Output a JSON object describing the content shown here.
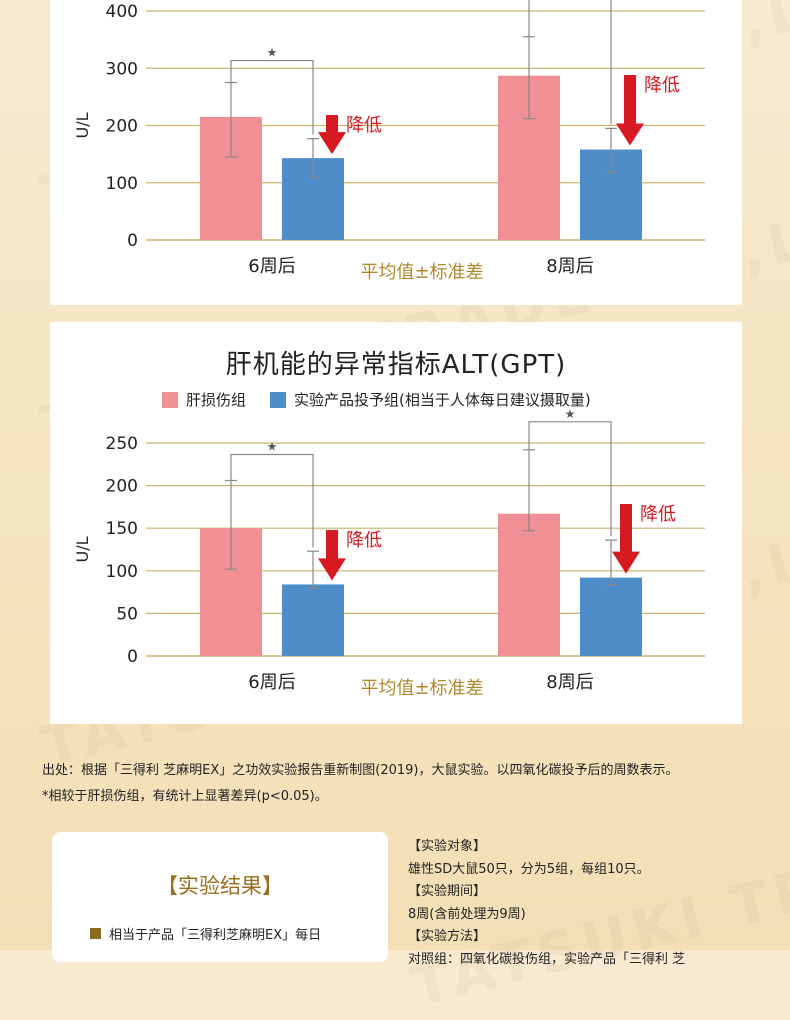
{
  "colors": {
    "control": "#f08f94",
    "treated": "#4e8dc9",
    "arrow": "#d71a21",
    "avg_label": "#b08a2a",
    "grid": "#cdb26a"
  },
  "chart_data": [
    {
      "type": "bar",
      "title": "",
      "ylabel": "U/L",
      "ylim": [
        0,
        400
      ],
      "yticks": [
        0,
        100,
        200,
        300,
        400
      ],
      "categories": [
        "6周后",
        "8周后"
      ],
      "series": [
        {
          "values": [
            215,
            287
          ],
          "err_low": [
            145,
            212
          ],
          "err_high": [
            275,
            355
          ]
        },
        {
          "values": [
            143,
            158
          ],
          "err_low": [
            110,
            118
          ],
          "err_high": [
            177,
            195
          ]
        }
      ],
      "sig_marker": "★",
      "annotation": "降低",
      "footer_label": "平均值±标准差"
    },
    {
      "type": "bar",
      "title": "肝机能的异常指标ALT(GPT)",
      "legend": [
        "肝损伤组",
        "实验产品投予组(相当于人体每日建议摄取量)"
      ],
      "ylabel": "U/L",
      "ylim": [
        0,
        250
      ],
      "yticks": [
        0,
        50,
        100,
        150,
        200,
        250
      ],
      "categories": [
        "6周后",
        "8周后"
      ],
      "series": [
        {
          "name": "肝损伤组",
          "values": [
            150,
            167
          ],
          "err_low": [
            102,
            147
          ],
          "err_high": [
            206,
            242
          ]
        },
        {
          "name": "实验产品投予组(相当于人体每日建议摄取量)",
          "values": [
            84,
            92
          ],
          "err_low": [
            80,
            84
          ],
          "err_high": [
            123,
            136
          ]
        }
      ],
      "sig_marker": "★",
      "annotation": "降低",
      "footer_label": "平均值±标准差"
    }
  ],
  "source": {
    "line1": "出处：根据「三得利 芝麻明EX」之功效实验报告重新制图(2019)，大鼠实验。以四氧化碳投予后的周数表示。",
    "line2": "*相较于肝损伤组，有统计上显著差异(p<0.05)。"
  },
  "results": {
    "title": "【实验结果】",
    "item": "相当于产品「三得利芝麻明EX」每日"
  },
  "details": [
    "【实验对象】",
    "雄性SD大鼠50只，分为5组，每组10只。",
    "【实验期间】",
    "8周(含前处理为9周)",
    "【实验方法】",
    "对照组：四氧化碳投伤组，实验产品「三得利 芝"
  ],
  "watermark": "TATSUKI TRADE CO.,LTD"
}
